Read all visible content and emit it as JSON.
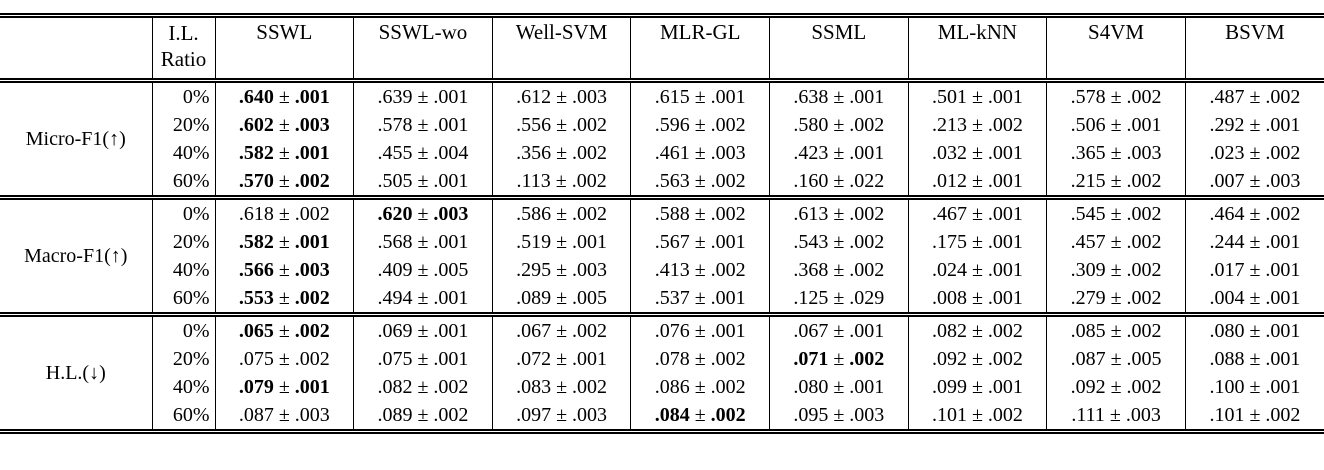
{
  "table": {
    "corner_label": "",
    "ratio_header": {
      "line1": "I.L.",
      "line2": "Ratio"
    },
    "methods": [
      "SSWL",
      "SSWL-wo",
      "Well-SVM",
      "MLR-GL",
      "SSML",
      "ML-kNN",
      "S4VM",
      "BSVM"
    ],
    "plus_minus": "±",
    "border_color": "#000000",
    "background_color": "#ffffff",
    "groups": [
      {
        "label": "Micro-F1(↑)",
        "rows": [
          {
            "ratio": "0%",
            "cells": [
              {
                "v": ".640",
                "e": ".001",
                "b": true
              },
              {
                "v": ".639",
                "e": ".001",
                "b": false
              },
              {
                "v": ".612",
                "e": ".003",
                "b": false
              },
              {
                "v": ".615",
                "e": ".001",
                "b": false
              },
              {
                "v": ".638",
                "e": ".001",
                "b": false
              },
              {
                "v": ".501",
                "e": ".001",
                "b": false
              },
              {
                "v": ".578",
                "e": ".002",
                "b": false
              },
              {
                "v": ".487",
                "e": ".002",
                "b": false
              }
            ]
          },
          {
            "ratio": "20%",
            "cells": [
              {
                "v": ".602",
                "e": ".003",
                "b": true
              },
              {
                "v": ".578",
                "e": ".001",
                "b": false
              },
              {
                "v": ".556",
                "e": ".002",
                "b": false
              },
              {
                "v": ".596",
                "e": ".002",
                "b": false
              },
              {
                "v": ".580",
                "e": ".002",
                "b": false
              },
              {
                "v": ".213",
                "e": ".002",
                "b": false
              },
              {
                "v": ".506",
                "e": ".001",
                "b": false
              },
              {
                "v": ".292",
                "e": ".001",
                "b": false
              }
            ]
          },
          {
            "ratio": "40%",
            "cells": [
              {
                "v": ".582",
                "e": ".001",
                "b": true
              },
              {
                "v": ".455",
                "e": ".004",
                "b": false
              },
              {
                "v": ".356",
                "e": ".002",
                "b": false
              },
              {
                "v": ".461",
                "e": ".003",
                "b": false
              },
              {
                "v": ".423",
                "e": ".001",
                "b": false
              },
              {
                "v": ".032",
                "e": ".001",
                "b": false
              },
              {
                "v": ".365",
                "e": ".003",
                "b": false
              },
              {
                "v": ".023",
                "e": ".002",
                "b": false
              }
            ]
          },
          {
            "ratio": "60%",
            "cells": [
              {
                "v": ".570",
                "e": ".002",
                "b": true
              },
              {
                "v": ".505",
                "e": ".001",
                "b": false
              },
              {
                "v": ".113",
                "e": ".002",
                "b": false
              },
              {
                "v": ".563",
                "e": ".002",
                "b": false
              },
              {
                "v": ".160",
                "e": ".022",
                "b": false
              },
              {
                "v": ".012",
                "e": ".001",
                "b": false
              },
              {
                "v": ".215",
                "e": ".002",
                "b": false
              },
              {
                "v": ".007",
                "e": ".003",
                "b": false
              }
            ]
          }
        ]
      },
      {
        "label": "Macro-F1(↑)",
        "rows": [
          {
            "ratio": "0%",
            "cells": [
              {
                "v": ".618",
                "e": ".002",
                "b": false
              },
              {
                "v": ".620",
                "e": ".003",
                "b": true
              },
              {
                "v": ".586",
                "e": ".002",
                "b": false
              },
              {
                "v": ".588",
                "e": ".002",
                "b": false
              },
              {
                "v": ".613",
                "e": ".002",
                "b": false
              },
              {
                "v": ".467",
                "e": ".001",
                "b": false
              },
              {
                "v": ".545",
                "e": ".002",
                "b": false
              },
              {
                "v": ".464",
                "e": ".002",
                "b": false
              }
            ]
          },
          {
            "ratio": "20%",
            "cells": [
              {
                "v": ".582",
                "e": ".001",
                "b": true
              },
              {
                "v": ".568",
                "e": ".001",
                "b": false
              },
              {
                "v": ".519",
                "e": ".001",
                "b": false
              },
              {
                "v": ".567",
                "e": ".001",
                "b": false
              },
              {
                "v": ".543",
                "e": ".002",
                "b": false
              },
              {
                "v": ".175",
                "e": ".001",
                "b": false
              },
              {
                "v": ".457",
                "e": ".002",
                "b": false
              },
              {
                "v": ".244",
                "e": ".001",
                "b": false
              }
            ]
          },
          {
            "ratio": "40%",
            "cells": [
              {
                "v": ".566",
                "e": ".003",
                "b": true
              },
              {
                "v": ".409",
                "e": ".005",
                "b": false
              },
              {
                "v": ".295",
                "e": ".003",
                "b": false
              },
              {
                "v": ".413",
                "e": ".002",
                "b": false
              },
              {
                "v": ".368",
                "e": ".002",
                "b": false
              },
              {
                "v": ".024",
                "e": ".001",
                "b": false
              },
              {
                "v": ".309",
                "e": ".002",
                "b": false
              },
              {
                "v": ".017",
                "e": ".001",
                "b": false
              }
            ]
          },
          {
            "ratio": "60%",
            "cells": [
              {
                "v": ".553",
                "e": ".002",
                "b": true
              },
              {
                "v": ".494",
                "e": ".001",
                "b": false
              },
              {
                "v": ".089",
                "e": ".005",
                "b": false
              },
              {
                "v": ".537",
                "e": ".001",
                "b": false
              },
              {
                "v": ".125",
                "e": ".029",
                "b": false
              },
              {
                "v": ".008",
                "e": ".001",
                "b": false
              },
              {
                "v": ".279",
                "e": ".002",
                "b": false
              },
              {
                "v": ".004",
                "e": ".001",
                "b": false
              }
            ]
          }
        ]
      },
      {
        "label": "H.L.(↓)",
        "rows": [
          {
            "ratio": "0%",
            "cells": [
              {
                "v": ".065",
                "e": ".002",
                "b": true
              },
              {
                "v": ".069",
                "e": ".001",
                "b": false
              },
              {
                "v": ".067",
                "e": ".002",
                "b": false
              },
              {
                "v": ".076",
                "e": ".001",
                "b": false
              },
              {
                "v": ".067",
                "e": ".001",
                "b": false
              },
              {
                "v": ".082",
                "e": ".002",
                "b": false
              },
              {
                "v": ".085",
                "e": ".002",
                "b": false
              },
              {
                "v": ".080",
                "e": ".001",
                "b": false
              }
            ]
          },
          {
            "ratio": "20%",
            "cells": [
              {
                "v": ".075",
                "e": ".002",
                "b": false
              },
              {
                "v": ".075",
                "e": ".001",
                "b": false
              },
              {
                "v": ".072",
                "e": ".001",
                "b": false
              },
              {
                "v": ".078",
                "e": ".002",
                "b": false
              },
              {
                "v": ".071",
                "e": ".002",
                "b": true
              },
              {
                "v": ".092",
                "e": ".002",
                "b": false
              },
              {
                "v": ".087",
                "e": ".005",
                "b": false
              },
              {
                "v": ".088",
                "e": ".001",
                "b": false
              }
            ]
          },
          {
            "ratio": "40%",
            "cells": [
              {
                "v": ".079",
                "e": ".001",
                "b": true
              },
              {
                "v": ".082",
                "e": ".002",
                "b": false
              },
              {
                "v": ".083",
                "e": ".002",
                "b": false
              },
              {
                "v": ".086",
                "e": ".002",
                "b": false
              },
              {
                "v": ".080",
                "e": ".001",
                "b": false
              },
              {
                "v": ".099",
                "e": ".001",
                "b": false
              },
              {
                "v": ".092",
                "e": ".002",
                "b": false
              },
              {
                "v": ".100",
                "e": ".001",
                "b": false
              }
            ]
          },
          {
            "ratio": "60%",
            "cells": [
              {
                "v": ".087",
                "e": ".003",
                "b": false
              },
              {
                "v": ".089",
                "e": ".002",
                "b": false
              },
              {
                "v": ".097",
                "e": ".003",
                "b": false
              },
              {
                "v": ".084",
                "e": ".002",
                "b": true
              },
              {
                "v": ".095",
                "e": ".003",
                "b": false
              },
              {
                "v": ".101",
                "e": ".002",
                "b": false
              },
              {
                "v": ".111",
                "e": ".003",
                "b": false
              },
              {
                "v": ".101",
                "e": ".002",
                "b": false
              }
            ]
          }
        ]
      }
    ]
  }
}
